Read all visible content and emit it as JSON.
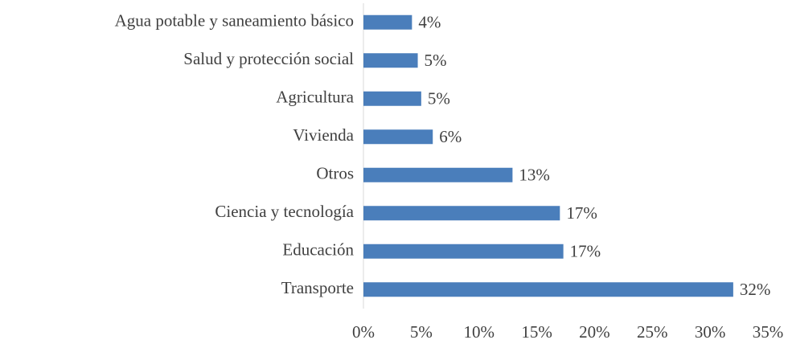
{
  "chart_data": {
    "type": "bar",
    "orientation": "horizontal",
    "categories": [
      "Agua potable y saneamiento básico",
      "Salud y protección social",
      "Agricultura",
      "Vivienda",
      "Otros",
      "Ciencia y tecnología",
      "Educación",
      "Transporte"
    ],
    "values": [
      4.2,
      4.7,
      5.0,
      6.0,
      12.9,
      17.0,
      17.3,
      32.0
    ],
    "value_labels": [
      "4%",
      "5%",
      "5%",
      "6%",
      "13%",
      "17%",
      "17%",
      "32%"
    ],
    "color": "#4a7ebb",
    "xlim": [
      0,
      35
    ],
    "xticks": [
      {
        "value": 0,
        "label": "0%"
      },
      {
        "value": 5,
        "label": "5%"
      },
      {
        "value": 10,
        "label": "10%"
      },
      {
        "value": 15,
        "label": "15%"
      },
      {
        "value": 20,
        "label": "20%"
      },
      {
        "value": 25,
        "label": "25%"
      },
      {
        "value": 30,
        "label": "30%"
      },
      {
        "value": 35,
        "label": "35%"
      }
    ],
    "grid": false
  }
}
